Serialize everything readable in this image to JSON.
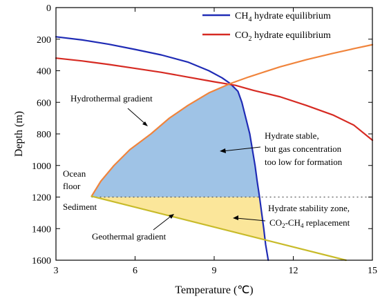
{
  "chart_data": {
    "type": "line",
    "xlabel": "Temperature (℃)",
    "ylabel": "Depth (m)",
    "xlim": [
      3,
      15
    ],
    "ylim": [
      0,
      1600
    ],
    "y_inverted": true,
    "xticks": [
      3,
      6,
      9,
      12,
      15
    ],
    "yticks": [
      0,
      200,
      400,
      600,
      800,
      1000,
      1200,
      1400,
      1600
    ],
    "grid": false,
    "legend_position": "top-right",
    "legend": [
      {
        "label_main": "CH",
        "label_sub": "4",
        "label_rest": " hydrate equilibrium",
        "color": "#1f2bb5"
      },
      {
        "label_main": "CO",
        "label_sub": "2",
        "label_rest": " hydrate equilibrium",
        "color": "#d62a22"
      }
    ],
    "series": [
      {
        "name": "CH4 hydrate equilibrium",
        "color": "#1f2bb5",
        "points": [
          [
            3.0,
            185
          ],
          [
            4.0,
            205
          ],
          [
            5.0,
            232
          ],
          [
            6.0,
            265
          ],
          [
            7.0,
            300
          ],
          [
            8.0,
            345
          ],
          [
            8.8,
            400
          ],
          [
            9.3,
            445
          ],
          [
            9.6,
            480
          ],
          [
            9.9,
            530
          ],
          [
            10.05,
            600
          ],
          [
            10.2,
            700
          ],
          [
            10.35,
            800
          ],
          [
            10.45,
            900
          ],
          [
            10.55,
            1000
          ],
          [
            10.63,
            1100
          ],
          [
            10.72,
            1200
          ],
          [
            10.8,
            1300
          ],
          [
            10.88,
            1400
          ],
          [
            10.95,
            1500
          ],
          [
            11.05,
            1600
          ]
        ]
      },
      {
        "name": "CO2 hydrate equilibrium",
        "color": "#d62a22",
        "points": [
          [
            3.0,
            320
          ],
          [
            4.0,
            338
          ],
          [
            5.0,
            360
          ],
          [
            6.0,
            385
          ],
          [
            7.0,
            410
          ],
          [
            8.0,
            440
          ],
          [
            9.0,
            470
          ],
          [
            9.8,
            492
          ],
          [
            10.5,
            525
          ],
          [
            11.5,
            565
          ],
          [
            12.5,
            620
          ],
          [
            13.5,
            680
          ],
          [
            14.3,
            745
          ],
          [
            15.0,
            840
          ]
        ]
      },
      {
        "name": "Hydrothermal gradient",
        "color": "#f0843c",
        "points": [
          [
            4.35,
            1195
          ],
          [
            4.7,
            1100
          ],
          [
            5.2,
            1000
          ],
          [
            5.8,
            900
          ],
          [
            6.6,
            800
          ],
          [
            7.3,
            700
          ],
          [
            8.0,
            620
          ],
          [
            8.8,
            540
          ],
          [
            9.6,
            482
          ],
          [
            10.3,
            440
          ],
          [
            11.5,
            375
          ],
          [
            12.5,
            330
          ],
          [
            13.5,
            290
          ],
          [
            14.3,
            260
          ],
          [
            15.0,
            235
          ]
        ]
      },
      {
        "name": "Geothermal gradient",
        "color": "#c8bb2a",
        "points": [
          [
            4.35,
            1195
          ],
          [
            14.0,
            1600
          ]
        ]
      }
    ],
    "ocean_floor_depth": 1200,
    "annotations": [
      {
        "text": "Hydrothermal gradient"
      },
      {
        "text": "Hydrate stable,"
      },
      {
        "text": "but gas concentration"
      },
      {
        "text": "too low for formation"
      },
      {
        "text": "Ocean"
      },
      {
        "text": "floor"
      },
      {
        "text": "Sediment"
      },
      {
        "text": "Geothermal gradient"
      },
      {
        "text": "Hydrate stability zone,"
      },
      {
        "text_main1": "CO",
        "text_sub1": "2",
        "text_mid": "-CH",
        "text_sub2": "4",
        "text_rest": " replacement"
      }
    ],
    "region_colors": {
      "hydrate_stable": "#9fc3e6",
      "stability_zone": "#fbe69a"
    }
  }
}
